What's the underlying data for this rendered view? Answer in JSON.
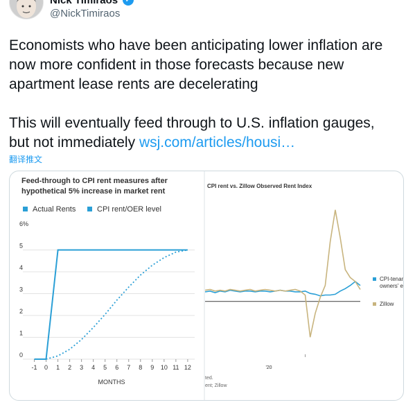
{
  "tweet": {
    "author_name": "Nick Timiraos",
    "handle": "@NickTimiraos",
    "verified": true,
    "text_line1": "Economists who have been anticipating lower inflation are now more confident in those forecasts because new apartment lease rents are decelerating",
    "text_line2_prefix": "This will eventually feed through to U.S. inflation gauges, but not immediately ",
    "link_text": "wsj.com/articles/housi…",
    "translate_label": "翻译推文"
  },
  "colors": {
    "accent": "#1d9bf0",
    "actual": "#2a9fd6",
    "cpi": "#2a9fd6",
    "zillow": "#c8b47e",
    "ref_line": "#555555"
  },
  "chart_data": [
    {
      "type": "line",
      "title": "Feed-through to CPI rent measures after hypothetical 5% increase in market rent",
      "xlabel": "MONTHS",
      "ylabel": "",
      "y_unit_label": "6%",
      "x_ticks": [
        -1,
        0,
        1,
        2,
        3,
        4,
        5,
        6,
        7,
        8,
        9,
        10,
        11,
        12
      ],
      "y_ticks": [
        0,
        1,
        2,
        3,
        4,
        5
      ],
      "xlim": [
        -1.5,
        12.3
      ],
      "ylim": [
        0,
        6
      ],
      "grid": true,
      "legend_position": "top-left",
      "series": [
        {
          "name": "Actual Rents",
          "style": "solid",
          "x": [
            -1,
            0,
            1,
            2,
            3,
            4,
            5,
            6,
            7,
            8,
            9,
            10,
            11,
            12
          ],
          "y": [
            0,
            0,
            5,
            5,
            5,
            5,
            5,
            5,
            5,
            5,
            5,
            5,
            5,
            5
          ]
        },
        {
          "name": "CPI rent/OER level",
          "style": "dotted",
          "x": [
            0,
            1,
            2,
            3,
            4,
            5,
            6,
            7,
            8,
            9,
            10,
            11,
            12
          ],
          "y": [
            0,
            0.15,
            0.45,
            0.9,
            1.45,
            2.05,
            2.7,
            3.3,
            3.85,
            4.3,
            4.65,
            4.9,
            5
          ]
        }
      ]
    },
    {
      "type": "line",
      "title": "CPI rent vs. Zillow Observed Rent Index",
      "xlabel": "",
      "ylabel": "",
      "x_ticks": [
        "'20"
      ],
      "legend_position": "right",
      "series": [
        {
          "name": "CPI-tenan owners' e",
          "x": [
            2015.0,
            2015.25,
            2015.5,
            2015.75,
            2016.0,
            2016.25,
            2016.5,
            2016.75,
            2017.0,
            2017.25,
            2017.5,
            2017.75,
            2018.0,
            2018.25,
            2018.5,
            2018.75,
            2019.0,
            2019.25,
            2019.5,
            2019.75,
            2020.0,
            2020.25,
            2020.5,
            2020.75,
            2021.0,
            2021.25,
            2021.5,
            2021.75,
            2022.0,
            2022.25,
            2022.5,
            2022.75
          ],
          "y": [
            3.2,
            3.3,
            3.1,
            3.3,
            3.2,
            3.4,
            3.3,
            3.2,
            3.3,
            3.3,
            3.2,
            3.3,
            3.3,
            3.2,
            3.3,
            3.4,
            3.3,
            3.3,
            3.2,
            3.2,
            3.3,
            3.0,
            2.9,
            2.7,
            2.8,
            2.8,
            2.9,
            3.3,
            3.6,
            4.0,
            4.5,
            4.0
          ]
        },
        {
          "name": "Zillow",
          "x": [
            2015.0,
            2015.25,
            2015.5,
            2015.75,
            2016.0,
            2016.25,
            2016.5,
            2016.75,
            2017.0,
            2017.25,
            2017.5,
            2017.75,
            2018.0,
            2018.25,
            2018.5,
            2018.75,
            2019.0,
            2019.25,
            2019.5,
            2019.75,
            2020.0,
            2020.25,
            2020.5,
            2020.75,
            2021.0,
            2021.25,
            2021.5,
            2021.75,
            2022.0,
            2022.25,
            2022.5,
            2022.75
          ],
          "y": [
            3.4,
            3.5,
            3.3,
            3.4,
            3.3,
            3.5,
            3.4,
            3.3,
            3.4,
            3.5,
            3.3,
            3.4,
            3.5,
            3.4,
            3.3,
            3.4,
            3.3,
            3.4,
            3.5,
            3.3,
            2.8,
            -2.5,
            0.5,
            2.5,
            4.0,
            9.5,
            13.5,
            10.0,
            6.0,
            5.0,
            4.5,
            3.5
          ]
        }
      ],
      "reference_line": 2,
      "notes": [
        "ted.",
        "ent; Zillow"
      ]
    }
  ]
}
